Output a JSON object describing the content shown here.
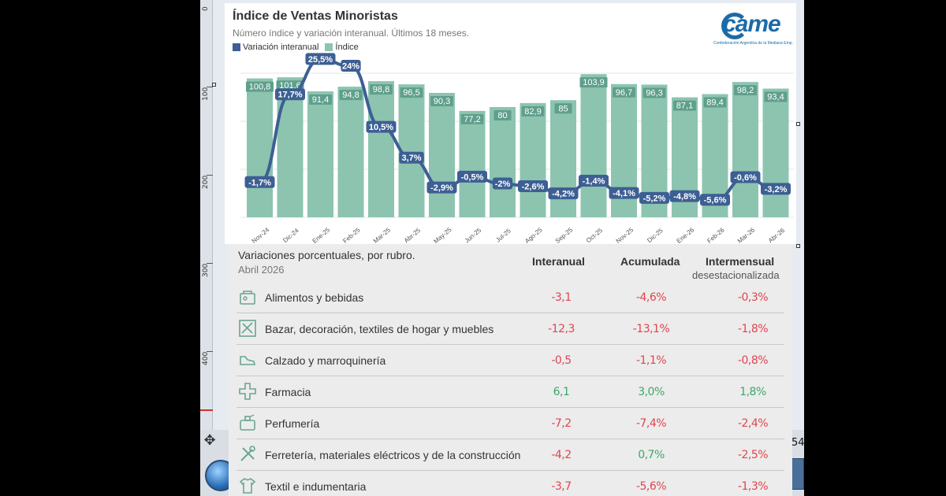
{
  "editor": {
    "ruler_ticks": [
      "0",
      "100",
      "200",
      "300",
      "400"
    ],
    "edge_number": "54",
    "move_icon": "move-arrows-icon"
  },
  "chart": {
    "title": "Índice de Ventas Minoristas",
    "subtitle": "Número índice y variación interanual. Últimos 18 meses.",
    "logo_text": "came",
    "logo_tagline": "Confederación Argentina de la Mediana Emp.",
    "colors": {
      "bar": "#8cc4b0",
      "line": "#3d5f93",
      "label_bg": "#5f9f8c"
    }
  },
  "chart_data": {
    "type": "bar",
    "categories": [
      "Nov-24",
      "Dic-24",
      "Ene-25",
      "Feb-25",
      "Mar-25",
      "Abr-25",
      "May-25",
      "Jun-25",
      "Jul-25",
      "Ago-25",
      "Sep-25",
      "Oct-25",
      "Nov-25",
      "Dic-25",
      "Ene-26",
      "Feb-26",
      "Mar-26",
      "Abr-26"
    ],
    "series": [
      {
        "name": "Índice",
        "type": "bar",
        "values": [
          100.8,
          101.6,
          91.4,
          94.8,
          98.8,
          96.5,
          90.3,
          77.2,
          80,
          82.9,
          85,
          103.9,
          96.7,
          96.3,
          87.1,
          89.4,
          98.2,
          93.4
        ],
        "labels": [
          "100,8",
          "101,6",
          "91,4",
          "94,8",
          "98,8",
          "96,5",
          "90,3",
          "77,2",
          "80",
          "82,9",
          "85",
          "103,9",
          "96,7",
          "96,3",
          "87,1",
          "89,4",
          "98,2",
          "93,4"
        ]
      },
      {
        "name": "Variación interanual",
        "type": "line",
        "values": [
          -1.7,
          17.7,
          25.5,
          24,
          10.5,
          3.7,
          -2.9,
          -0.5,
          -2,
          -2.6,
          -4.2,
          -1.4,
          -4.1,
          -5.2,
          -4.8,
          -5.6,
          -0.6,
          -3.2
        ],
        "labels": [
          "-1,7%",
          "17,7%",
          "25,5%",
          "24%",
          "10,5%",
          "3,7%",
          "-2,9%",
          "-0,5%",
          "-2%",
          "-2,6%",
          "-4,2%",
          "-1,4%",
          "-4,1%",
          "-5,2%",
          "-4,8%",
          "-5,6%",
          "-0,6%",
          "-3,2%"
        ]
      }
    ],
    "legend_position": "top-left",
    "grid": true
  },
  "table": {
    "title": "Variaciones porcentuales, por rubro.",
    "date": "Abril 2026",
    "columns": [
      "Interanual",
      "Acumulada",
      "Intermensual"
    ],
    "column3_sub": "desestacionalizada",
    "rows": [
      {
        "icon": "grocery-bag-icon",
        "label": "Alimentos y bebidas",
        "interanual": "-3,1",
        "acumulada": "-4,6%",
        "intermensual": "-0,3%",
        "s1": "neg",
        "s2": "neg",
        "s3": "neg"
      },
      {
        "icon": "home-decor-icon",
        "label": "Bazar, decoración, textiles de hogar y muebles",
        "interanual": "-12,3",
        "acumulada": "-13,1%",
        "intermensual": "-1,8%",
        "s1": "neg",
        "s2": "neg",
        "s3": "neg"
      },
      {
        "icon": "shoe-icon",
        "label": "Calzado y marroquinería",
        "interanual": "-0,5",
        "acumulada": "-1,1%",
        "intermensual": "-0,8%",
        "s1": "neg",
        "s2": "neg",
        "s3": "neg"
      },
      {
        "icon": "pharmacy-cross-icon",
        "label": "Farmacia",
        "interanual": "6,1",
        "acumulada": "3,0%",
        "intermensual": "1,8%",
        "s1": "pos",
        "s2": "pos",
        "s3": "pos"
      },
      {
        "icon": "perfume-icon",
        "label": "Perfumería",
        "interanual": "-7,2",
        "acumulada": "-7,4%",
        "intermensual": "-2,4%",
        "s1": "neg",
        "s2": "neg",
        "s3": "neg"
      },
      {
        "icon": "tools-icon",
        "label": "Ferretería, materiales eléctricos y de la construcción",
        "interanual": "-4,2",
        "acumulada": "0,7%",
        "intermensual": "-2,5%",
        "s1": "neg",
        "s2": "pos",
        "s3": "neg"
      },
      {
        "icon": "tshirt-icon",
        "label": "Textil e indumentaria",
        "interanual": "-3,7",
        "acumulada": "-5,6%",
        "intermensual": "-1,3%",
        "s1": "neg",
        "s2": "neg",
        "s3": "neg"
      }
    ]
  }
}
